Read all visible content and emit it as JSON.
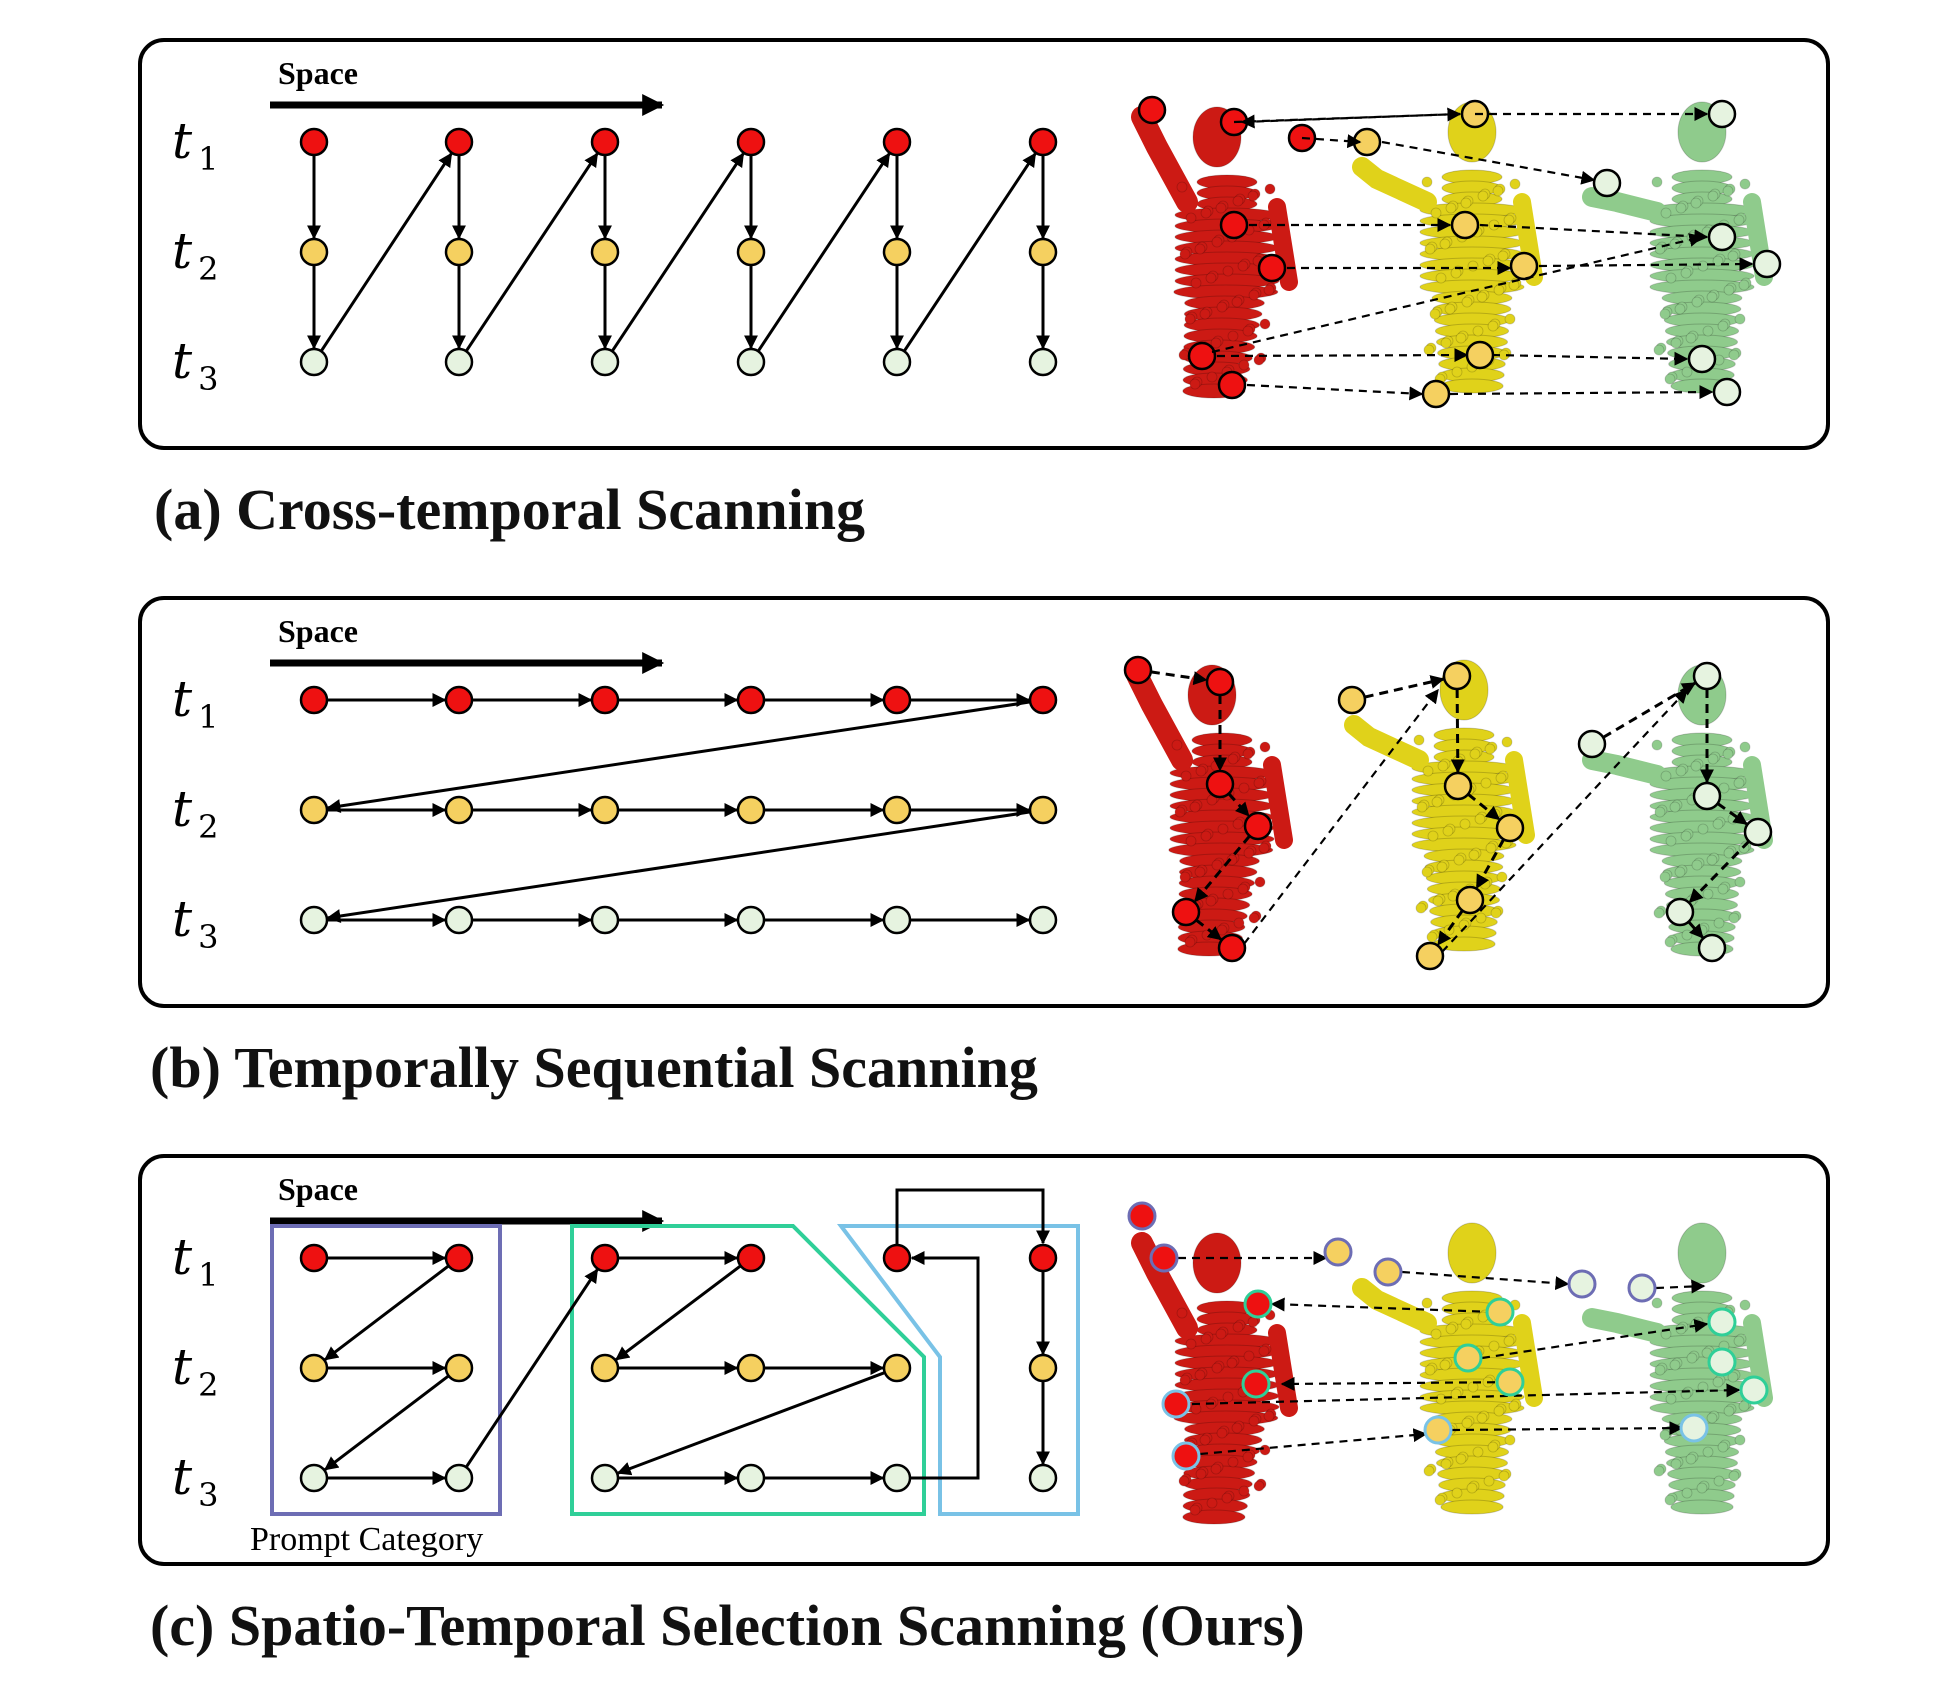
{
  "axis_label": "Space",
  "time_labels": [
    "t",
    "t",
    "t"
  ],
  "time_subscripts": [
    "1",
    "2",
    "3"
  ],
  "prompt_label": "Prompt Category",
  "captions": {
    "a": "(a) Cross-temporal Scanning",
    "b": "(b) Temporally Sequential Scanning",
    "c": "(c) Spatio-Temporal Selection Scanning (Ours)"
  },
  "colors": {
    "t1": "#ee1111",
    "t2": "#f5d060",
    "t3": "#e6f3e0",
    "figure_red": "#cc1a14",
    "figure_yellow": "#e0d21a",
    "figure_green": "#8fcb8c",
    "box_purple": "#6d6db4",
    "box_green": "#2fcf98",
    "box_blue": "#79c2e6"
  }
}
